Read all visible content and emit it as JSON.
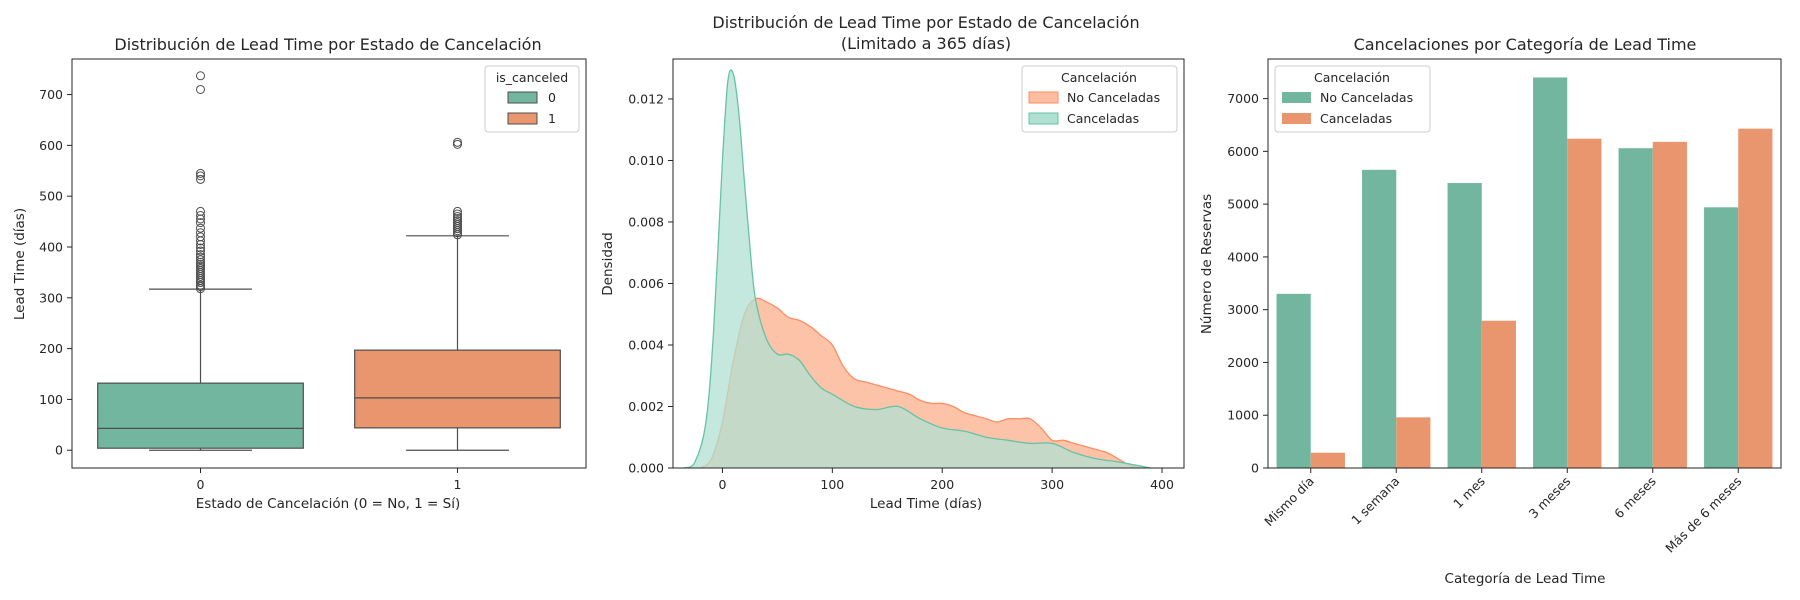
{
  "colors": {
    "teal": "#66c2a5",
    "orange": "#fc8d62",
    "box_teal": "#73b6a0",
    "box_orange": "#e9966f",
    "kde_teal_fill": "#b0e0d1",
    "kde_orange_fill": "#fdbda0"
  },
  "chart_data": [
    {
      "type": "box",
      "title": "Distribución de Lead Time por Estado de Cancelación",
      "xlabel": "Estado de Cancelación (0 = No, 1 = Sí)",
      "ylabel": "Lead Time (días)",
      "categories": [
        "0",
        "1"
      ],
      "ylim": [
        -35,
        770
      ],
      "yticks": [
        0,
        100,
        200,
        300,
        400,
        500,
        600,
        700
      ],
      "legend": {
        "title": "is_canceled",
        "position": "top-right",
        "entries": [
          {
            "name": "0",
            "color": "#73b6a0"
          },
          {
            "name": "1",
            "color": "#e9966f"
          }
        ]
      },
      "boxes": [
        {
          "category": "0",
          "whisker_low": 0,
          "q1": 4,
          "median": 43,
          "q3": 132,
          "whisker_high": 317,
          "outliers": [
            318,
            322,
            325,
            330,
            334,
            338,
            342,
            346,
            350,
            354,
            358,
            362,
            366,
            370,
            375,
            380,
            385,
            392,
            398,
            405,
            412,
            420,
            428,
            437,
            448,
            455,
            462,
            470,
            533,
            540,
            545,
            710,
            737
          ]
        },
        {
          "category": "1",
          "whisker_low": 0,
          "q1": 44,
          "median": 103,
          "q3": 197,
          "whisker_high": 422,
          "outliers": [
            424,
            428,
            432,
            436,
            440,
            444,
            448,
            452,
            456,
            460,
            465,
            470,
            602,
            606
          ]
        }
      ]
    },
    {
      "type": "area",
      "title": "Distribución de Lead Time por Estado de Cancelación",
      "subtitle": "(Limitado a 365 días)",
      "xlabel": "Lead Time (días)",
      "ylabel": "Densidad",
      "xlim": [
        -45,
        420
      ],
      "ylim": [
        0,
        0.0133
      ],
      "xticks": [
        0,
        100,
        200,
        300,
        400
      ],
      "yticks": [
        0.0,
        0.002,
        0.004,
        0.006,
        0.008,
        0.01,
        0.012
      ],
      "ytick_labels": [
        "0.000",
        "0.002",
        "0.004",
        "0.006",
        "0.008",
        "0.010",
        "0.012"
      ],
      "legend": {
        "title": "Cancelación",
        "position": "top-right",
        "entries": [
          {
            "name": "No Canceladas",
            "color": "#fc8d62"
          },
          {
            "name": "Canceladas",
            "color": "#66c2a5"
          }
        ]
      },
      "series": [
        {
          "name": "No Canceladas",
          "color": "#fc8d62",
          "x": [
            -20,
            -10,
            0,
            10,
            20,
            30,
            40,
            50,
            60,
            70,
            80,
            90,
            100,
            110,
            120,
            130,
            140,
            150,
            160,
            170,
            180,
            190,
            200,
            210,
            220,
            230,
            240,
            250,
            260,
            270,
            280,
            290,
            300,
            310,
            320,
            330,
            340,
            350,
            360,
            370,
            380
          ],
          "y": [
            0,
            0.0003,
            0.0015,
            0.0035,
            0.005,
            0.0055,
            0.0054,
            0.0052,
            0.0049,
            0.0048,
            0.0046,
            0.0043,
            0.004,
            0.0033,
            0.0029,
            0.0028,
            0.0027,
            0.0026,
            0.0025,
            0.0024,
            0.0022,
            0.0021,
            0.0021,
            0.002,
            0.0018,
            0.0017,
            0.0016,
            0.0015,
            0.0016,
            0.0016,
            0.0016,
            0.0013,
            0.0009,
            0.0009,
            0.0008,
            0.0007,
            0.0006,
            0.0005,
            0.0003,
            0.0001,
            0
          ]
        },
        {
          "name": "Canceladas",
          "color": "#66c2a5",
          "x": [
            -35,
            -25,
            -15,
            -8,
            0,
            5,
            10,
            15,
            20,
            25,
            30,
            40,
            50,
            60,
            70,
            80,
            90,
            100,
            120,
            140,
            160,
            180,
            200,
            220,
            240,
            260,
            280,
            300,
            320,
            340,
            360,
            375,
            390
          ],
          "y": [
            0,
            0.0002,
            0.0015,
            0.0045,
            0.01,
            0.0126,
            0.0128,
            0.0115,
            0.0093,
            0.0072,
            0.0055,
            0.0042,
            0.0037,
            0.0037,
            0.0035,
            0.003,
            0.0026,
            0.0024,
            0.002,
            0.0019,
            0.002,
            0.0016,
            0.0013,
            0.0012,
            0.001,
            0.0009,
            0.0008,
            0.0008,
            0.0005,
            0.0003,
            0.0002,
            0.0001,
            0
          ]
        }
      ]
    },
    {
      "type": "bar",
      "title": "Cancelaciones por Categoría de Lead Time",
      "xlabel": "Categoría de Lead Time",
      "ylabel": "Número de Reservas",
      "categories": [
        "Mismo día",
        "1 semana",
        "1 mes",
        "3 meses",
        "6 meses",
        "Más de 6 meses"
      ],
      "ylim": [
        0,
        7750
      ],
      "yticks": [
        0,
        1000,
        2000,
        3000,
        4000,
        5000,
        6000,
        7000
      ],
      "legend": {
        "title": "Cancelación",
        "position": "top-left",
        "entries": [
          {
            "name": "No Canceladas",
            "color": "#73b6a0"
          },
          {
            "name": "Canceladas",
            "color": "#e9966f"
          }
        ]
      },
      "series": [
        {
          "name": "No Canceladas",
          "color": "#73b6a0",
          "values": [
            3300,
            5650,
            5400,
            7400,
            6060,
            4940
          ]
        },
        {
          "name": "Canceladas",
          "color": "#e9966f",
          "values": [
            290,
            960,
            2790,
            6240,
            6180,
            6430
          ]
        }
      ]
    }
  ]
}
